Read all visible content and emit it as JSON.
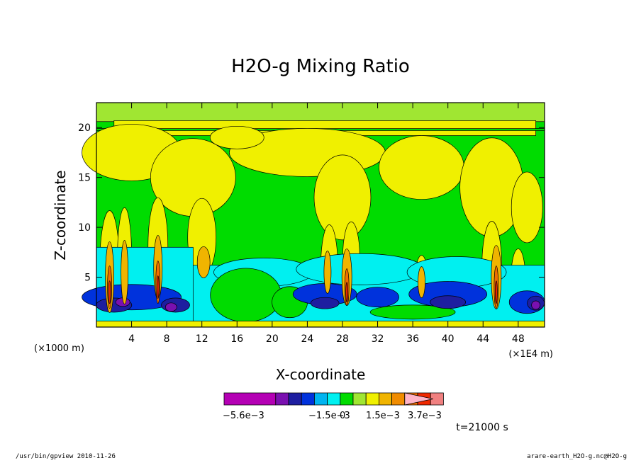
{
  "chart_data": {
    "type": "heatmap",
    "title": "H2O-g Mixing Ratio",
    "xlabel": "X-coordinate",
    "ylabel": "Z-coordinate",
    "x_unit_left": "(×1000 m)",
    "x_unit_right": "(×1E4 m)",
    "xlim": [
      0,
      51
    ],
    "ylim": [
      0,
      22.5
    ],
    "x_ticks": [
      "4",
      "8",
      "12",
      "16",
      "20",
      "24",
      "28",
      "32",
      "36",
      "40",
      "44",
      "48"
    ],
    "x_tick_values": [
      4,
      8,
      12,
      16,
      20,
      24,
      28,
      32,
      36,
      40,
      44,
      48
    ],
    "y_ticks": [
      "5",
      "10",
      "15",
      "20"
    ],
    "y_tick_values": [
      5,
      10,
      15,
      20
    ],
    "colorbar": {
      "colors": [
        "#b400b4",
        "#7a10b0",
        "#1e1ea0",
        "#0032dc",
        "#00b4f0",
        "#00f0f0",
        "#00dc00",
        "#a0e632",
        "#f0f000",
        "#f0b400",
        "#f08c00",
        "#f06e00",
        "#f02800",
        "#f08080",
        "#ffb4c8"
      ],
      "labels": [
        "−5.6e−3",
        "−1.5e−3",
        "0",
        "1.5e−3",
        "3.7e−3"
      ],
      "label_positions": [
        1,
        5,
        6,
        7.8,
        9.4
      ]
    },
    "annotation": "t=21000 s"
  },
  "footer": {
    "left": "/usr/bin/gpview  2010-11-26",
    "right": "arare-earth_H2O-g.nc@H2O-g"
  }
}
